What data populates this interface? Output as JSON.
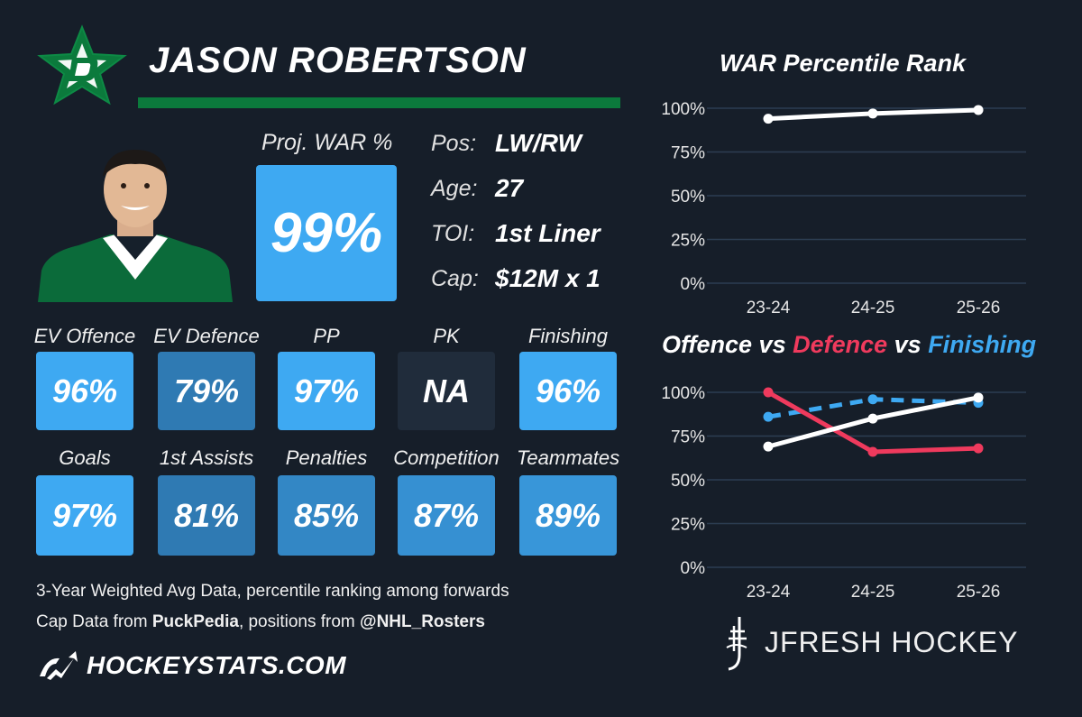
{
  "player": {
    "name": "JASON ROBERTSON",
    "proj_war_label": "Proj. WAR %",
    "proj_war_value": "99%",
    "info": [
      {
        "key": "Pos:",
        "value": "LW/RW"
      },
      {
        "key": "Age:",
        "value": "27"
      },
      {
        "key": "TOI:",
        "value": "1st Liner"
      },
      {
        "key": "Cap:",
        "value": "$12M x 1"
      }
    ]
  },
  "tiles_row1": [
    {
      "label": "EV Offence",
      "value": "96%",
      "color": "#3ea9f2"
    },
    {
      "label": "EV Defence",
      "value": "79%",
      "color": "#2f7ab3"
    },
    {
      "label": "PP",
      "value": "97%",
      "color": "#3ea9f2"
    },
    {
      "label": "PK",
      "value": "NA",
      "color": "#202c3b"
    },
    {
      "label": "Finishing",
      "value": "96%",
      "color": "#3ea9f2"
    }
  ],
  "tiles_row2": [
    {
      "label": "Goals",
      "value": "97%",
      "color": "#3ea9f2"
    },
    {
      "label": "1st Assists",
      "value": "81%",
      "color": "#2f7ab3"
    },
    {
      "label": "Penalties",
      "value": "85%",
      "color": "#3387c5"
    },
    {
      "label": "Competition",
      "value": "87%",
      "color": "#3690d2"
    },
    {
      "label": "Teammates",
      "value": "89%",
      "color": "#3896d9"
    }
  ],
  "footnotes": {
    "line1": "3-Year Weighted Avg Data, percentile ranking among forwards",
    "line2_prefix": "Cap Data from ",
    "line2_source": "PuckPedia",
    "line2_mid": ", positions from ",
    "line2_handle": "@NHL_Rosters"
  },
  "site": {
    "name": "HOCKEYSTATS.COM"
  },
  "brand": {
    "name": "JFRESH HOCKEY"
  },
  "icons": {
    "team_logo": "stars-logo-icon",
    "photo": "player-photo",
    "site_logo": "hockeystats-logo-icon",
    "brand_logo": "jfresh-logo-icon"
  },
  "colors": {
    "background": "#161e29",
    "green": "#0b7a3c",
    "offence": "#ffffff",
    "defence": "#ef3a5d",
    "finishing": "#3ea9f2"
  },
  "chart_data": [
    {
      "type": "line",
      "title": "WAR Percentile Rank",
      "categories": [
        "23-24",
        "24-25",
        "25-26"
      ],
      "y_ticks": [
        "0%",
        "25%",
        "50%",
        "75%",
        "100%"
      ],
      "ylim": [
        0,
        100
      ],
      "grid": true,
      "series": [
        {
          "values": [
            94,
            97,
            99
          ],
          "color": "#ffffff",
          "dashed": false
        }
      ]
    },
    {
      "type": "line",
      "title_parts": [
        {
          "text": "Offence",
          "color": "#ffffff"
        },
        {
          "text": " vs ",
          "color": "#ffffff"
        },
        {
          "text": "Defence",
          "color": "#ef3a5d"
        },
        {
          "text": " vs ",
          "color": "#ffffff"
        },
        {
          "text": "Finishing",
          "color": "#3ea9f2"
        }
      ],
      "categories": [
        "23-24",
        "24-25",
        "25-26"
      ],
      "y_ticks": [
        "0%",
        "25%",
        "50%",
        "75%",
        "100%"
      ],
      "ylim": [
        0,
        100
      ],
      "grid": true,
      "series": [
        {
          "values": [
            86,
            96,
            94
          ],
          "color": "#3ea9f2",
          "dashed": true
        },
        {
          "values": [
            100,
            66,
            68
          ],
          "color": "#ef3a5d",
          "dashed": false
        },
        {
          "values": [
            69,
            85,
            97
          ],
          "color": "#ffffff",
          "dashed": false
        }
      ]
    }
  ]
}
